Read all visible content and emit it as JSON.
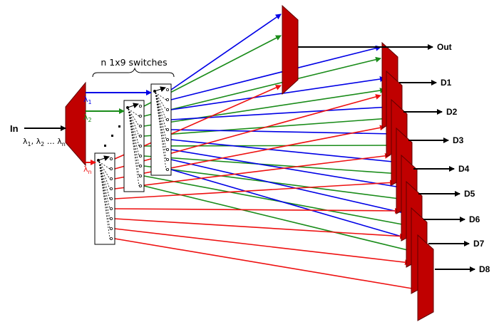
{
  "labels": {
    "input": "In",
    "wavelengths_main": "λ",
    "wavelengths_subs": [
      "1",
      "2",
      "n"
    ],
    "wavelengths_sep1": ", ",
    "wavelengths_sep2": " … ",
    "switches_title": "n 1x9 switches",
    "output": "Out",
    "drops": [
      "D1",
      "D2",
      "D3",
      "D4",
      "D5",
      "D6",
      "D7",
      "D8"
    ],
    "lambda_1_sub": "1",
    "lambda_2_sub": "2",
    "lambda_n_sub": "n"
  },
  "colors": {
    "block": "#c00000",
    "blue": "#0000e6",
    "green": "#1a8c1a",
    "red": "#ee1111",
    "black": "#000000"
  }
}
